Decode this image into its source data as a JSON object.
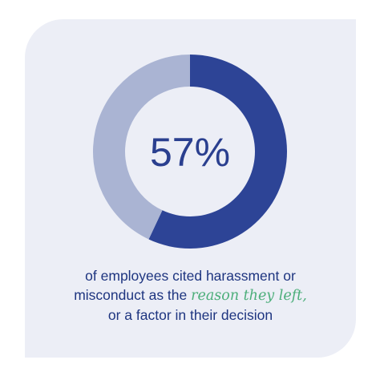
{
  "chart_data": {
    "type": "pie",
    "variant": "donut",
    "values": [
      57,
      43
    ],
    "center_label": "57%",
    "colors": [
      "#2d4496",
      "#aab4d3"
    ]
  },
  "caption": {
    "line1": "of employees cited harassment or",
    "line2_start": "misconduct as the",
    "line2_emphasis": "reason they left,",
    "line3": "or a factor in their decision"
  },
  "colors": {
    "card_background": "#eceef6",
    "primary_text": "#1e3580",
    "accent_text": "#4cae7a"
  }
}
